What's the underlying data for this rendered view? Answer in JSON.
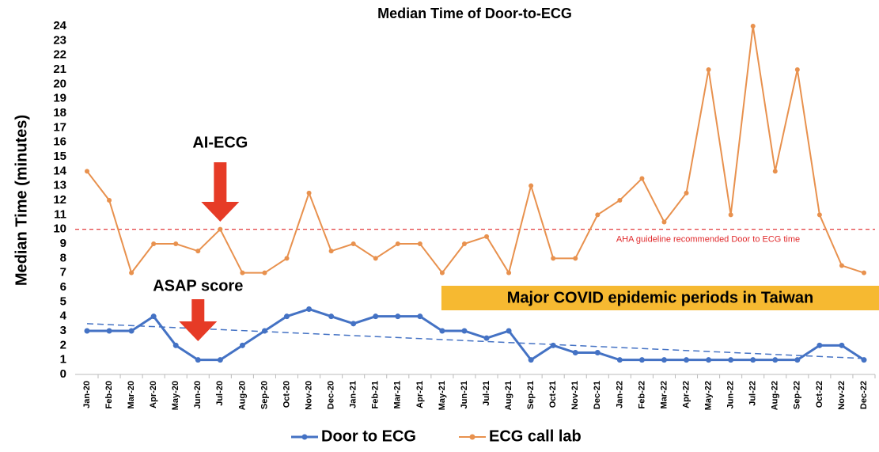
{
  "chart_data": {
    "type": "line",
    "title": "Median Time of Door-to-ECG",
    "y_label": "Median Time (minutes)",
    "categories": [
      "Jan-20",
      "Feb-20",
      "Mar-20",
      "Apr-20",
      "May-20",
      "Jun-20",
      "Jul-20",
      "Aug-20",
      "Sep-20",
      "Oct-20",
      "Nov-20",
      "Dec-20",
      "Jan-21",
      "Feb-21",
      "Mar-21",
      "Apr-21",
      "May-21",
      "Jun-21",
      "Jul-21",
      "Aug-21",
      "Sep-21",
      "Oct-21",
      "Nov-21",
      "Dec-21",
      "Jan-22",
      "Feb-22",
      "Mar-22",
      "Apr-22",
      "May-22",
      "Jun-22",
      "Jul-22",
      "Aug-22",
      "Sep-22",
      "Oct-22",
      "Nov-22",
      "Dec-22"
    ],
    "series": [
      {
        "name": "Door to ECG",
        "color": "#4472c4",
        "values": [
          3,
          3,
          3,
          4,
          2,
          1,
          1,
          2,
          3,
          4,
          4.5,
          4,
          3.5,
          4,
          4,
          4,
          3,
          3,
          2.5,
          3,
          1,
          2,
          1.5,
          1.5,
          1,
          1,
          1,
          1,
          1,
          1,
          1,
          1,
          1,
          2,
          2,
          1
        ]
      },
      {
        "name": "ECG call lab",
        "color": "#e8914e",
        "values": [
          14,
          12,
          7,
          9,
          9,
          8.5,
          10,
          7,
          7,
          8,
          12.5,
          8.5,
          9,
          8,
          9,
          9,
          7,
          9,
          9.5,
          7,
          13,
          8,
          8,
          11,
          12,
          13.5,
          10.5,
          12.5,
          21,
          11,
          24,
          14,
          21,
          11,
          7.5,
          7
        ]
      }
    ],
    "trendline": {
      "start": 3.5,
      "end": 1.1,
      "color": "#4472c4"
    },
    "reference_line": {
      "value": 10,
      "label": "AHA guideline recommended Door to ECG time",
      "color": "#e0282a"
    },
    "annotations": [
      {
        "text": "AI-ECG",
        "x": "Jul-20"
      },
      {
        "text": "ASAP score",
        "x": "Jun-20"
      }
    ],
    "period": {
      "text": "Major COVID epidemic periods in Taiwan",
      "x_start": "May-21"
    },
    "ylim": [
      0,
      24
    ],
    "yticks": [
      0,
      1,
      2,
      3,
      4,
      5,
      6,
      7,
      8,
      9,
      10,
      11,
      12,
      13,
      14,
      15,
      16,
      17,
      18,
      19,
      20,
      21,
      22,
      23,
      24
    ],
    "legend": "bottom"
  }
}
